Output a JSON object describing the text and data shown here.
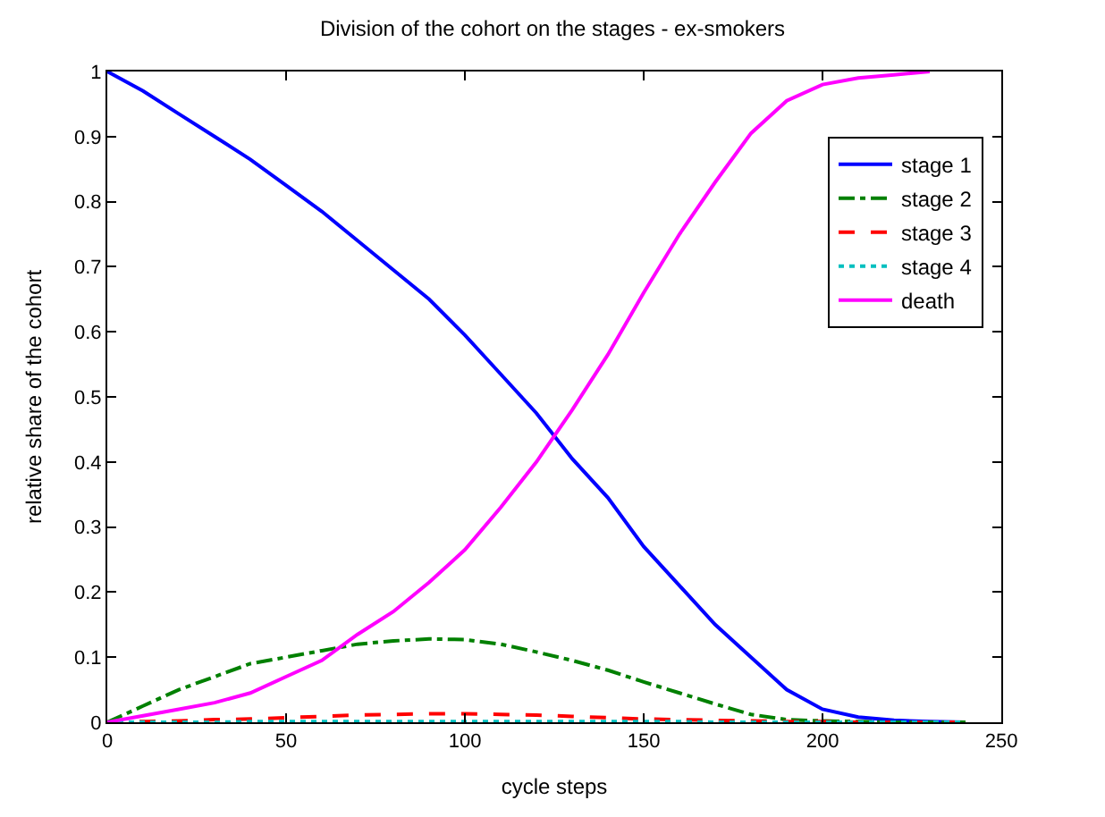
{
  "chart_data": {
    "type": "line",
    "title": "Division of the cohort on the stages - ex-smokers",
    "xlabel": "cycle steps",
    "ylabel": "relative share of the cohort",
    "x": [
      0,
      10,
      20,
      30,
      40,
      50,
      60,
      70,
      80,
      90,
      100,
      110,
      120,
      130,
      140,
      150,
      160,
      170,
      180,
      190,
      200,
      210,
      220,
      230,
      240
    ],
    "series": [
      {
        "name": "stage 1",
        "color": "#0000ff",
        "line_style": "solid",
        "values": [
          1.0,
          0.97,
          0.935,
          0.9,
          0.865,
          0.825,
          0.785,
          0.74,
          0.695,
          0.65,
          0.595,
          0.535,
          0.475,
          0.405,
          0.345,
          0.27,
          0.21,
          0.15,
          0.1,
          0.05,
          0.02,
          0.008,
          0.003,
          0.001,
          0
        ]
      },
      {
        "name": "stage 2",
        "color": "#008000",
        "line_style": "dashdot",
        "values": [
          0,
          0.025,
          0.05,
          0.07,
          0.09,
          0.1,
          0.11,
          0.12,
          0.125,
          0.128,
          0.127,
          0.12,
          0.108,
          0.095,
          0.08,
          0.062,
          0.045,
          0.028,
          0.012,
          0.004,
          0.002,
          0.001,
          0,
          0,
          0
        ]
      },
      {
        "name": "stage 3",
        "color": "#ff0000",
        "line_style": "dashed",
        "values": [
          0,
          0.001,
          0.002,
          0.004,
          0.005,
          0.007,
          0.009,
          0.011,
          0.012,
          0.013,
          0.013,
          0.012,
          0.011,
          0.009,
          0.007,
          0.005,
          0.004,
          0.003,
          0.002,
          0.001,
          0.001,
          0,
          0,
          0,
          0
        ]
      },
      {
        "name": "stage 4",
        "color": "#00bfbf",
        "line_style": "dotted",
        "values": [
          0,
          0,
          0,
          0,
          0.001,
          0.001,
          0.001,
          0.001,
          0.001,
          0.001,
          0.001,
          0.001,
          0.001,
          0.001,
          0.001,
          0.001,
          0.001,
          0,
          0,
          0,
          0,
          0,
          0,
          0,
          0
        ]
      },
      {
        "name": "death",
        "color": "#ff00ff",
        "line_style": "solid",
        "values": [
          0,
          0.01,
          0.02,
          0.03,
          0.045,
          0.07,
          0.095,
          0.135,
          0.17,
          0.215,
          0.265,
          0.33,
          0.4,
          0.48,
          0.565,
          0.66,
          0.75,
          0.83,
          0.905,
          0.955,
          0.98,
          0.99,
          0.995,
          1.0,
          null
        ]
      }
    ],
    "xlim": [
      0,
      250
    ],
    "xticks": [
      0,
      50,
      100,
      150,
      200,
      250
    ],
    "ylim": [
      0,
      1
    ],
    "yticks": [
      0,
      0.1,
      0.2,
      0.3,
      0.4,
      0.5,
      0.6,
      0.7,
      0.8,
      0.9,
      1
    ],
    "legend": "top right",
    "marker": "none"
  }
}
